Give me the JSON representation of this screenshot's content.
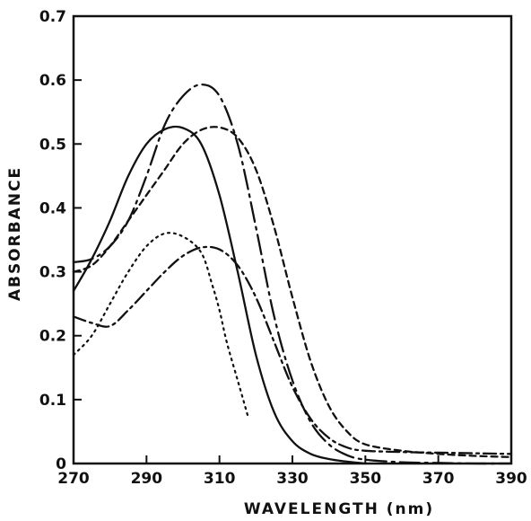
{
  "chart_data": {
    "type": "line",
    "xlabel": "WAVELENGTH (nm)",
    "ylabel": "ABSORBANCE",
    "xlim": [
      270,
      390
    ],
    "ylim": [
      0,
      0.7
    ],
    "x_ticks": [
      270,
      290,
      310,
      330,
      350,
      370,
      390
    ],
    "x_tick_labels": [
      "270",
      "290",
      "310",
      "330",
      "350",
      "370",
      "390"
    ],
    "y_ticks": [
      0,
      0.1,
      0.2,
      0.3,
      0.4,
      0.5,
      0.6,
      0.7
    ],
    "y_tick_labels": [
      "0",
      "0.1",
      "0.2",
      "0.3",
      "0.4",
      "0.5",
      "0.6",
      "0.7"
    ],
    "grid": false,
    "series": [
      {
        "style": "solid",
        "x": [
          270,
          275,
          280,
          285,
          290,
          295,
          300,
          305,
          310,
          315,
          320,
          325,
          330,
          335,
          340,
          345,
          350
        ],
        "y": [
          0.27,
          0.32,
          0.38,
          0.45,
          0.5,
          0.523,
          0.525,
          0.5,
          0.42,
          0.3,
          0.17,
          0.08,
          0.035,
          0.015,
          0.007,
          0.003,
          0.0
        ]
      },
      {
        "style": "long-dash-dot",
        "x": [
          270,
          275,
          280,
          285,
          290,
          295,
          300,
          305,
          310,
          315,
          320,
          325,
          330,
          335,
          340,
          345,
          350,
          360,
          370,
          380,
          390
        ],
        "y": [
          0.315,
          0.32,
          0.34,
          0.38,
          0.45,
          0.53,
          0.575,
          0.593,
          0.575,
          0.5,
          0.37,
          0.23,
          0.13,
          0.065,
          0.03,
          0.013,
          0.006,
          0.002,
          0.001,
          0.0,
          0.0
        ]
      },
      {
        "style": "short-dash",
        "x": [
          270,
          275,
          280,
          285,
          290,
          295,
          300,
          305,
          310,
          315,
          320,
          325,
          330,
          335,
          340,
          345,
          350,
          360,
          370,
          380,
          390
        ],
        "y": [
          0.3,
          0.31,
          0.34,
          0.38,
          0.42,
          0.46,
          0.5,
          0.522,
          0.526,
          0.51,
          0.46,
          0.37,
          0.26,
          0.16,
          0.09,
          0.05,
          0.03,
          0.02,
          0.015,
          0.012,
          0.01
        ]
      },
      {
        "style": "dash-dot",
        "x": [
          270,
          275,
          280,
          285,
          290,
          295,
          300,
          305,
          310,
          315,
          320,
          325,
          330,
          335,
          340,
          345,
          350,
          360,
          370,
          380,
          390
        ],
        "y": [
          0.23,
          0.22,
          0.215,
          0.24,
          0.27,
          0.3,
          0.325,
          0.338,
          0.335,
          0.31,
          0.26,
          0.19,
          0.12,
          0.07,
          0.04,
          0.025,
          0.02,
          0.018,
          0.017,
          0.016,
          0.015
        ]
      },
      {
        "style": "dotted",
        "x": [
          270,
          275,
          280,
          285,
          290,
          295,
          300,
          305,
          308,
          310,
          312,
          315,
          318
        ],
        "y": [
          0.17,
          0.2,
          0.25,
          0.3,
          0.34,
          0.36,
          0.355,
          0.33,
          0.28,
          0.24,
          0.19,
          0.13,
          0.07
        ]
      }
    ]
  }
}
